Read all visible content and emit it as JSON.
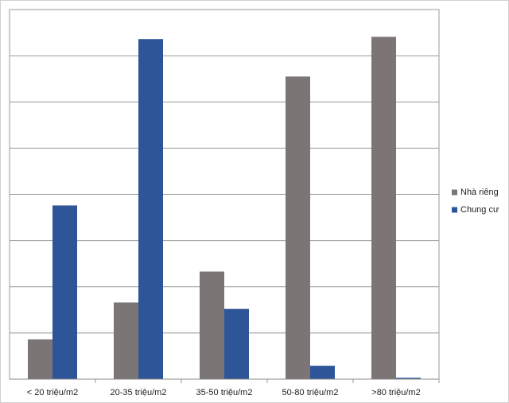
{
  "chart_data": {
    "type": "bar",
    "categories": [
      "< 20 triệu/m2",
      "20-35 triệu/m2",
      "35-50 triệu/m2",
      "50-80 triệu/m2",
      ">80 triệu/m2"
    ],
    "series": [
      {
        "name": "Nhà riêng",
        "color": "#7b7575",
        "values": [
          0.86,
          1.66,
          2.33,
          6.55,
          7.41
        ]
      },
      {
        "name": "Chung cư",
        "color": "#2e5597",
        "values": [
          3.76,
          7.36,
          1.52,
          0.29,
          0.03
        ]
      }
    ],
    "ylim": [
      0,
      8
    ],
    "yticks": [
      0,
      1,
      2,
      3,
      4,
      5,
      6,
      7,
      8
    ],
    "grid": true,
    "legend": "right"
  }
}
